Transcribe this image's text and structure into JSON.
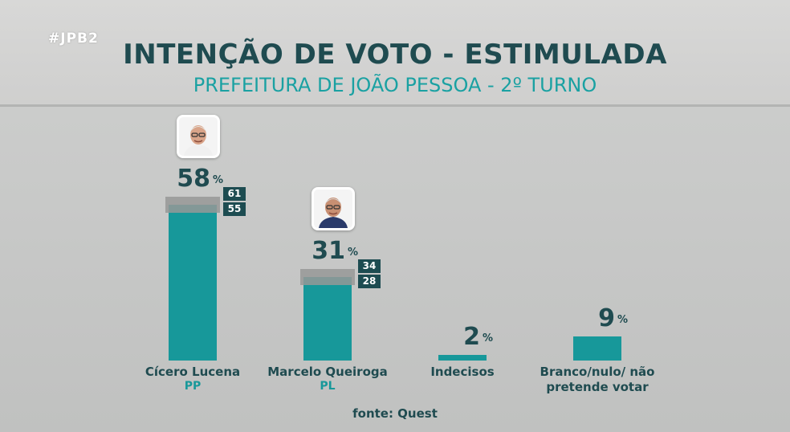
{
  "tag": "#JPB2",
  "title": "INTENÇÃO DE VOTO - ESTIMULADA",
  "subtitle": "PREFEITURA DE JOÃO PESSOA - 2º TURNO",
  "source": "fonte: Quest",
  "colors": {
    "bar": "#17989a",
    "title": "#1f4b50",
    "subtitle": "#1aa1a2",
    "margin_box": "#1d4c51",
    "ci_band": "#969896"
  },
  "chart_data": {
    "type": "bar",
    "title": "INTENÇÃO DE VOTO - ESTIMULADA",
    "subtitle": "PREFEITURA DE JOÃO PESSOA - 2º TURNO",
    "unit": "%",
    "categories": [
      "Cícero Lucena",
      "Marcelo Queiroga",
      "Indecisos",
      "Branco/nulo/ não pretende votar"
    ],
    "parties": [
      "PP",
      "PL",
      "",
      ""
    ],
    "values": [
      58,
      31,
      2,
      9
    ],
    "intervals": [
      [
        55,
        61
      ],
      [
        28,
        34
      ],
      null,
      null
    ],
    "photos": [
      "person-photo",
      "person-photo",
      null,
      null
    ],
    "ylim": [
      0,
      61
    ],
    "grid": false,
    "legend": "none"
  }
}
